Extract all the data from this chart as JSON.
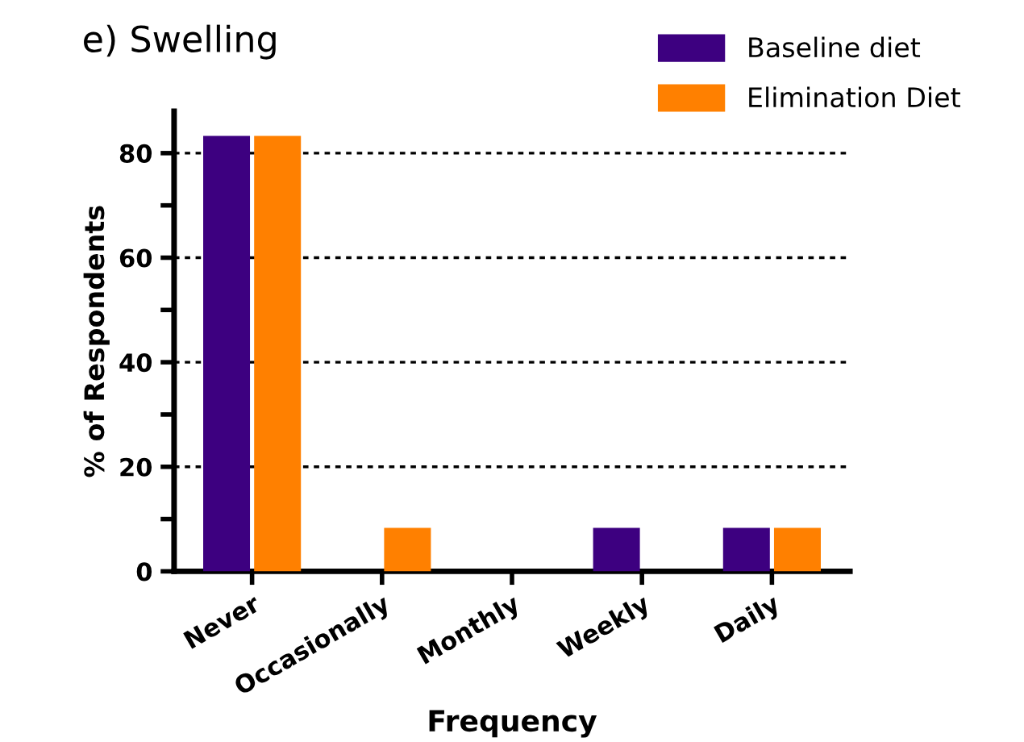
{
  "chart_data": {
    "type": "bar",
    "title": "e) Swelling",
    "xlabel": "Frequency",
    "ylabel": "% of Respondents",
    "categories": [
      "Never",
      "Occasionally",
      "Monthly",
      "Weekly",
      "Daily"
    ],
    "series": [
      {
        "name": "Baseline diet",
        "color": "#3d0080",
        "values": [
          83.3,
          0,
          0,
          8.3,
          8.3
        ]
      },
      {
        "name": "Elimination Diet",
        "color": "#ff8000",
        "values": [
          83.3,
          8.3,
          0,
          0,
          8.3
        ]
      }
    ],
    "ylim": [
      0,
      88
    ],
    "yticks": [
      0,
      {
        "value": 10,
        "label": null
      },
      20,
      {
        "value": 30,
        "label": null
      },
      40,
      {
        "value": 50,
        "label": null
      },
      60,
      {
        "value": 70,
        "label": null
      },
      80
    ],
    "grid": "y",
    "legend": "top right"
  }
}
